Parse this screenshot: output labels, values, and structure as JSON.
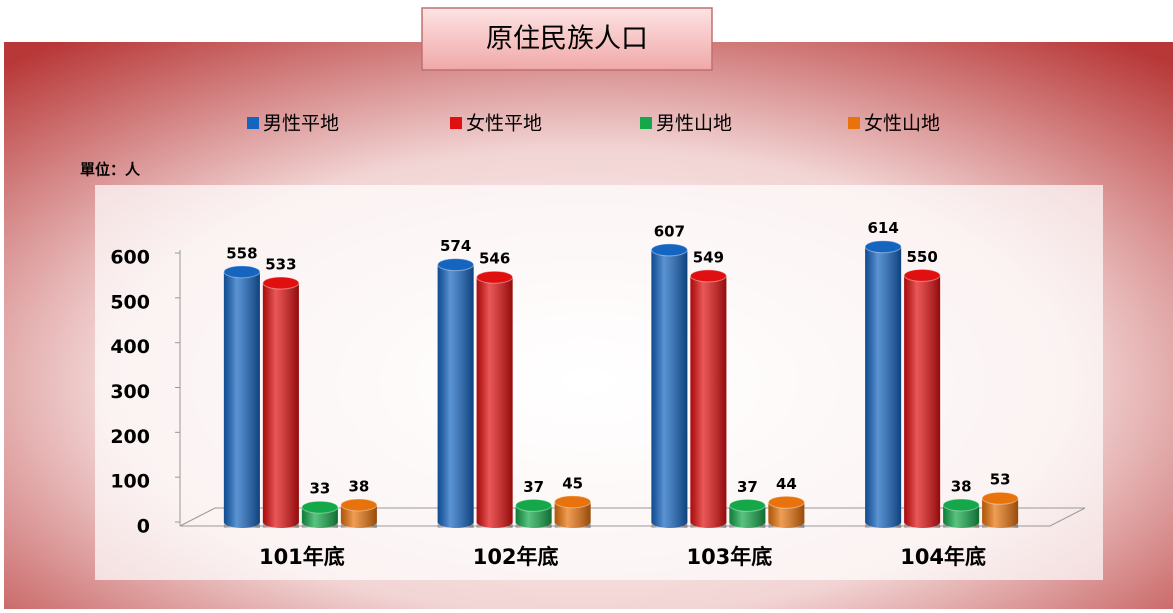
{
  "chart_data": {
    "type": "bar",
    "title": "原住民族人口",
    "unit_label": "單位：人",
    "categories": [
      "101年底",
      "102年底",
      "103年底",
      "104年底"
    ],
    "series": [
      {
        "name": "男性平地",
        "color": "#1565c0",
        "values": [
          558,
          574,
          607,
          614
        ]
      },
      {
        "name": "女性平地",
        "color": "#e01010",
        "values": [
          533,
          546,
          549,
          550
        ]
      },
      {
        "name": "男性山地",
        "color": "#14a84a",
        "values": [
          33,
          37,
          37,
          38
        ]
      },
      {
        "name": "女性山地",
        "color": "#e8730c",
        "values": [
          38,
          45,
          44,
          53
        ]
      }
    ],
    "ylim": [
      0,
      600
    ],
    "yticks": [
      0,
      100,
      200,
      300,
      400,
      500,
      600
    ],
    "legend": "top"
  }
}
